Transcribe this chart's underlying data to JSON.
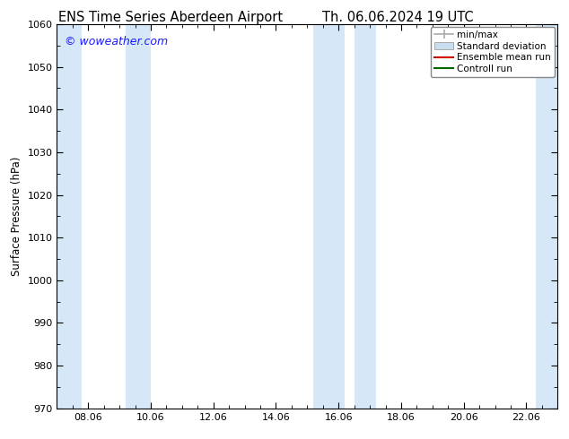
{
  "title_left": "ENS Time Series Aberdeen Airport",
  "title_right": "Th. 06.06.2024 19 UTC",
  "ylabel": "Surface Pressure (hPa)",
  "ylim": [
    970,
    1060
  ],
  "yticks": [
    970,
    980,
    990,
    1000,
    1010,
    1020,
    1030,
    1040,
    1050,
    1060
  ],
  "xtick_labels": [
    "08.06",
    "10.06",
    "12.06",
    "14.06",
    "16.06",
    "18.06",
    "20.06",
    "22.06"
  ],
  "xtick_positions": [
    1,
    3,
    5,
    7,
    9,
    11,
    13,
    15
  ],
  "xlim": [
    0,
    16
  ],
  "shaded_bands": [
    {
      "xstart": 0.0,
      "xend": 0.8
    },
    {
      "xstart": 2.2,
      "xend": 3.0
    },
    {
      "xstart": 8.2,
      "xend": 9.2
    },
    {
      "xstart": 9.5,
      "xend": 10.2
    },
    {
      "xstart": 15.3,
      "xend": 16.0
    }
  ],
  "band_color": "#d6e8f7",
  "watermark": "© woweather.com",
  "watermark_color": "#1a1aff",
  "bg_color": "#ffffff",
  "title_fontsize": 10.5,
  "ylabel_fontsize": 8.5,
  "tick_fontsize": 8,
  "legend_fontsize": 7.5
}
